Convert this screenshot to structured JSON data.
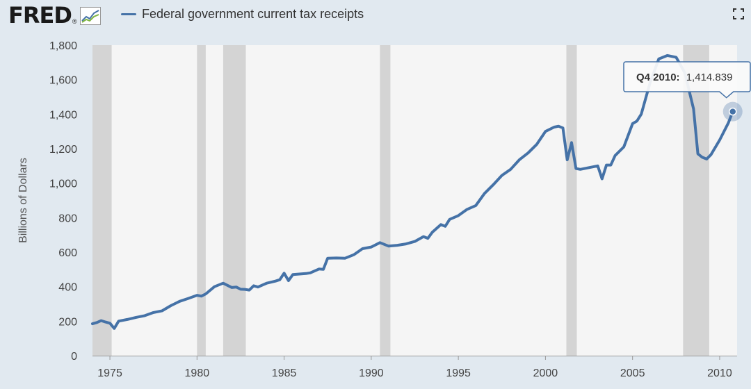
{
  "header": {
    "logo_text": "FRED",
    "logo_reg": "®",
    "logo_icon": "line-graph-icon",
    "fullscreen_icon": "fullscreen-icon"
  },
  "colors": {
    "series": "#4572a7",
    "recession": "#d4d4d4",
    "plot_bg": "#f5f5f5",
    "page_bg": "#e1e9f0"
  },
  "tooltip": {
    "period": "Q4 2010:",
    "value": "1,414.839"
  },
  "chart_data": {
    "type": "line",
    "ylabel": "Billions of Dollars",
    "ylim": [
      0,
      1800
    ],
    "yticks": [
      0,
      200,
      400,
      600,
      800,
      1000,
      1200,
      1400,
      1600,
      1800
    ],
    "ytick_labels": [
      "0",
      "200",
      "400",
      "600",
      "800",
      "1,000",
      "1,200",
      "1,400",
      "1,600",
      "1,800"
    ],
    "xlim": [
      1974.0,
      2011.0
    ],
    "xticks": [
      1975,
      1980,
      1985,
      1990,
      1995,
      2000,
      2005,
      2010
    ],
    "xtick_labels": [
      "1975",
      "1980",
      "1985",
      "1990",
      "1995",
      "2000",
      "2005",
      "2010"
    ],
    "grid": false,
    "legend": "top-left",
    "recessions": [
      [
        1974.0,
        1975.1
      ],
      [
        1980.0,
        1980.5
      ],
      [
        1981.5,
        1982.8
      ],
      [
        1990.5,
        1991.1
      ],
      [
        2001.2,
        2001.8
      ],
      [
        2007.9,
        2009.4
      ]
    ],
    "series": [
      {
        "name": "Federal government current tax receipts",
        "x": [
          1974.0,
          1974.25,
          1974.5,
          1974.75,
          1975.0,
          1975.25,
          1975.5,
          1976.0,
          1976.5,
          1977.0,
          1977.5,
          1978.0,
          1978.5,
          1979.0,
          1979.5,
          1980.0,
          1980.25,
          1980.5,
          1981.0,
          1981.5,
          1982.0,
          1982.25,
          1982.5,
          1982.75,
          1983.0,
          1983.25,
          1983.5,
          1984.0,
          1984.5,
          1984.75,
          1985.0,
          1985.25,
          1985.5,
          1986.0,
          1986.25,
          1986.5,
          1987.0,
          1987.25,
          1987.5,
          1988.0,
          1988.5,
          1989.0,
          1989.5,
          1990.0,
          1990.5,
          1991.0,
          1991.5,
          1992.0,
          1992.5,
          1993.0,
          1993.25,
          1993.5,
          1994.0,
          1994.25,
          1994.5,
          1995.0,
          1995.5,
          1996.0,
          1996.5,
          1997.0,
          1997.5,
          1998.0,
          1998.5,
          1999.0,
          1999.5,
          2000.0,
          2000.5,
          2000.75,
          2001.0,
          2001.25,
          2001.5,
          2001.75,
          2002.0,
          2002.5,
          2003.0,
          2003.25,
          2003.5,
          2003.75,
          2004.0,
          2004.5,
          2005.0,
          2005.25,
          2005.5,
          2006.0,
          2006.5,
          2007.0,
          2007.5,
          2008.0,
          2008.5,
          2008.75,
          2009.0,
          2009.25,
          2009.5,
          2010.0,
          2010.5,
          2010.75
        ],
        "values": [
          185,
          192,
          203,
          195,
          188,
          158,
          200,
          210,
          222,
          232,
          250,
          260,
          290,
          315,
          332,
          350,
          345,
          358,
          400,
          420,
          395,
          398,
          385,
          384,
          380,
          405,
          398,
          420,
          432,
          440,
          478,
          435,
          470,
          474,
          476,
          480,
          502,
          500,
          565,
          566,
          565,
          585,
          620,
          630,
          655,
          635,
          640,
          648,
          662,
          690,
          680,
          715,
          760,
          750,
          790,
          812,
          848,
          870,
          940,
          990,
          1045,
          1080,
          1135,
          1175,
          1225,
          1300,
          1325,
          1330,
          1320,
          1135,
          1235,
          1085,
          1080,
          1090,
          1100,
          1025,
          1105,
          1105,
          1160,
          1210,
          1345,
          1360,
          1400,
          1580,
          1720,
          1740,
          1730,
          1640,
          1430,
          1170,
          1150,
          1140,
          1165,
          1250,
          1350,
          1414.839
        ]
      }
    ]
  }
}
